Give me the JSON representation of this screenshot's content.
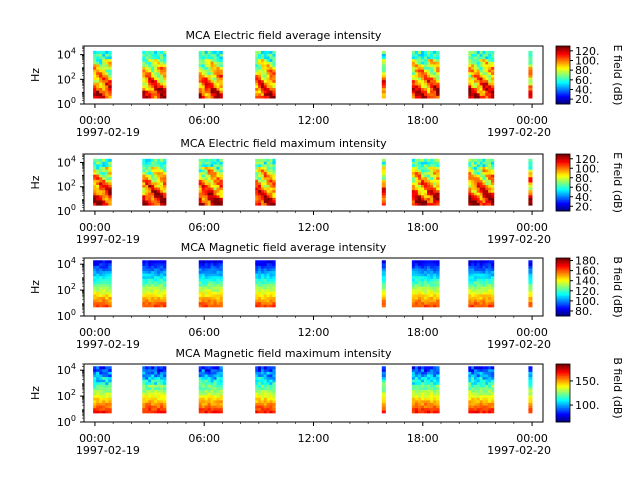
{
  "chart_data": [
    {
      "type": "heatmap",
      "title": "MCA  Electric field average intensity",
      "ylabel": "Hz",
      "yscale": "log",
      "ylim": [
        1,
        50000
      ],
      "y_ticks": [
        {
          "base": "10",
          "exp": "0"
        },
        {
          "base": "10",
          "exp": "2"
        },
        {
          "base": "10",
          "exp": "4"
        }
      ],
      "x_ticks": [
        "00:00",
        "06:00",
        "12:00",
        "18:00",
        "00:00"
      ],
      "x_dates": [
        "1997-02-19",
        "1997-02-20"
      ],
      "xlim_hours": [
        -0.6,
        24.6
      ],
      "colorbar": {
        "label": "E field (dB)",
        "min": 10,
        "max": 130,
        "ticks": [
          "20.",
          "40.",
          "60.",
          "80.",
          "100.",
          "120."
        ],
        "tick_values": [
          20,
          40,
          60,
          80,
          100,
          120
        ]
      },
      "data_intervals_hours": [
        [
          -0.1,
          0.9
        ],
        [
          2.6,
          3.9
        ],
        [
          5.7,
          7.0
        ],
        [
          8.8,
          9.9
        ],
        [
          15.75,
          15.95
        ],
        [
          17.4,
          18.9
        ],
        [
          20.5,
          21.9
        ],
        [
          23.8,
          24.0
        ]
      ],
      "data_freq_range_hz": [
        3,
        20000
      ],
      "intensity_range_db": [
        30,
        120
      ]
    },
    {
      "type": "heatmap",
      "title": "MCA  Electric field maximum intensity",
      "ylabel": "Hz",
      "yscale": "log",
      "ylim": [
        1,
        50000
      ],
      "y_ticks": [
        {
          "base": "10",
          "exp": "0"
        },
        {
          "base": "10",
          "exp": "2"
        },
        {
          "base": "10",
          "exp": "4"
        }
      ],
      "x_ticks": [
        "00:00",
        "06:00",
        "12:00",
        "18:00",
        "00:00"
      ],
      "x_dates": [
        "1997-02-19",
        "1997-02-20"
      ],
      "xlim_hours": [
        -0.6,
        24.6
      ],
      "colorbar": {
        "label": "E field (dB)",
        "min": 10,
        "max": 130,
        "ticks": [
          "20.",
          "40.",
          "60.",
          "80.",
          "100.",
          "120."
        ],
        "tick_values": [
          20,
          40,
          60,
          80,
          100,
          120
        ]
      },
      "data_intervals_hours": [
        [
          -0.1,
          0.9
        ],
        [
          2.6,
          3.9
        ],
        [
          5.7,
          7.0
        ],
        [
          8.8,
          9.9
        ],
        [
          15.75,
          15.95
        ],
        [
          17.4,
          18.9
        ],
        [
          20.5,
          21.9
        ],
        [
          23.8,
          24.0
        ]
      ],
      "data_freq_range_hz": [
        3,
        20000
      ],
      "intensity_range_db": [
        30,
        125
      ]
    },
    {
      "type": "heatmap",
      "title": "MCA  Magnetic field average intensity",
      "ylabel": "Hz",
      "yscale": "log",
      "ylim": [
        1,
        30000
      ],
      "y_ticks": [
        {
          "base": "10",
          "exp": "0"
        },
        {
          "base": "10",
          "exp": "2"
        },
        {
          "base": "10",
          "exp": "4"
        }
      ],
      "x_ticks": [
        "00:00",
        "06:00",
        "12:00",
        "18:00",
        "00:00"
      ],
      "x_dates": [
        "1997-02-19",
        "1997-02-20"
      ],
      "xlim_hours": [
        -0.6,
        24.6
      ],
      "colorbar": {
        "label": "B field (dB)",
        "min": 70,
        "max": 185,
        "ticks": [
          "80.",
          "100.",
          "120.",
          "140.",
          "160.",
          "180."
        ],
        "tick_values": [
          80,
          100,
          120,
          140,
          160,
          180
        ]
      },
      "data_intervals_hours": [
        [
          -0.1,
          0.9
        ],
        [
          2.6,
          3.9
        ],
        [
          5.7,
          7.0
        ],
        [
          8.8,
          9.9
        ],
        [
          15.75,
          15.95
        ],
        [
          17.4,
          18.9
        ],
        [
          20.5,
          21.9
        ],
        [
          23.8,
          24.0
        ]
      ],
      "data_freq_range_hz": [
        5,
        20000
      ],
      "intensity_range_db": [
        80,
        175
      ]
    },
    {
      "type": "heatmap",
      "title": "MCA  Magnetic field maximum intensity",
      "ylabel": "Hz",
      "yscale": "log",
      "ylim": [
        1,
        30000
      ],
      "y_ticks": [
        {
          "base": "10",
          "exp": "0"
        },
        {
          "base": "10",
          "exp": "2"
        },
        {
          "base": "10",
          "exp": "4"
        }
      ],
      "x_ticks": [
        "00:00",
        "06:00",
        "12:00",
        "18:00",
        "00:00"
      ],
      "x_dates": [
        "1997-02-19",
        "1997-02-20"
      ],
      "xlim_hours": [
        -0.6,
        24.6
      ],
      "colorbar": {
        "label": "B field (dB)",
        "min": 65,
        "max": 185,
        "ticks": [
          "100.",
          "150."
        ],
        "tick_values": [
          100,
          150
        ]
      },
      "data_intervals_hours": [
        [
          -0.1,
          0.9
        ],
        [
          2.6,
          3.9
        ],
        [
          5.7,
          7.0
        ],
        [
          8.8,
          9.9
        ],
        [
          15.75,
          15.95
        ],
        [
          17.4,
          18.9
        ],
        [
          20.5,
          21.9
        ],
        [
          23.8,
          24.0
        ]
      ],
      "data_freq_range_hz": [
        5,
        20000
      ],
      "intensity_range_db": [
        80,
        180
      ]
    }
  ]
}
